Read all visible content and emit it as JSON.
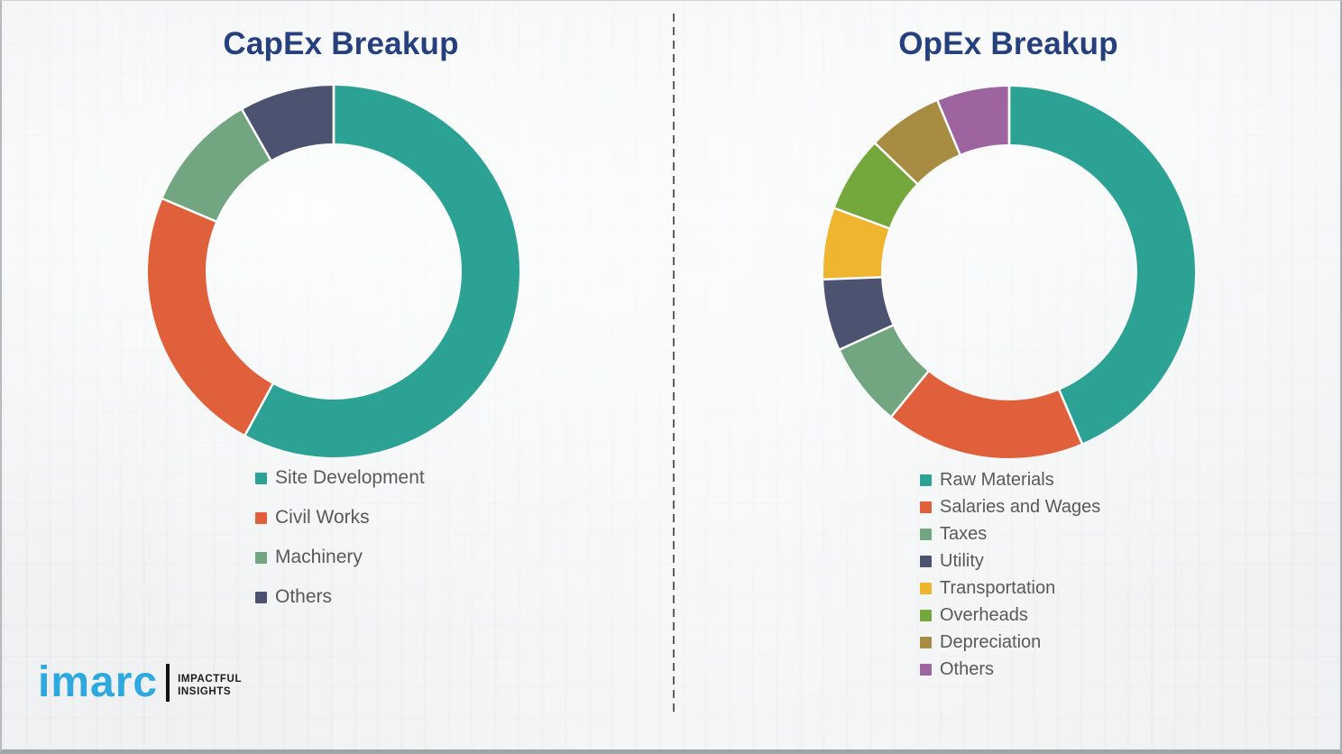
{
  "page": {
    "background_color": "#eff1f2",
    "divider_color": "#5e5e5e",
    "title_text_color": "#26407e",
    "legend_text_color": "#595959"
  },
  "logo": {
    "brand": "imarc",
    "tagline_line1": "IMPACTFUL",
    "tagline_line2": "INSIGHTS",
    "brand_color": "#2da9e0"
  },
  "chart_data": [
    {
      "type": "pie",
      "variant": "donut",
      "title": "CapEx Breakup",
      "categories": [
        "Site Development",
        "Civil Works",
        "Machinery",
        "Others"
      ],
      "values": [
        57.9,
        23.5,
        10.4,
        8.2
      ],
      "colors": [
        "#2ba294",
        "#e0603c",
        "#72a681",
        "#4b5370"
      ],
      "start_angle_deg": 0,
      "direction": "clockwise",
      "inner_radius_ratio": 0.69,
      "data_labels_shown": false,
      "legend_position": "below-left"
    },
    {
      "type": "pie",
      "variant": "donut",
      "title": "OpEx Breakup",
      "categories": [
        "Raw Materials",
        "Salaries and Wages",
        "Taxes",
        "Utility",
        "Transportation",
        "Overheads",
        "Depreciation",
        "Others"
      ],
      "values": [
        43.6,
        17.3,
        7.3,
        6.2,
        6.2,
        6.6,
        6.5,
        6.3
      ],
      "colors": [
        "#2ba294",
        "#e0603c",
        "#72a681",
        "#4b5370",
        "#f0b52e",
        "#74a83d",
        "#a78c41",
        "#9d64a0"
      ],
      "start_angle_deg": 0,
      "direction": "clockwise",
      "inner_radius_ratio": 0.69,
      "data_labels_shown": false,
      "legend_position": "below-left"
    }
  ]
}
